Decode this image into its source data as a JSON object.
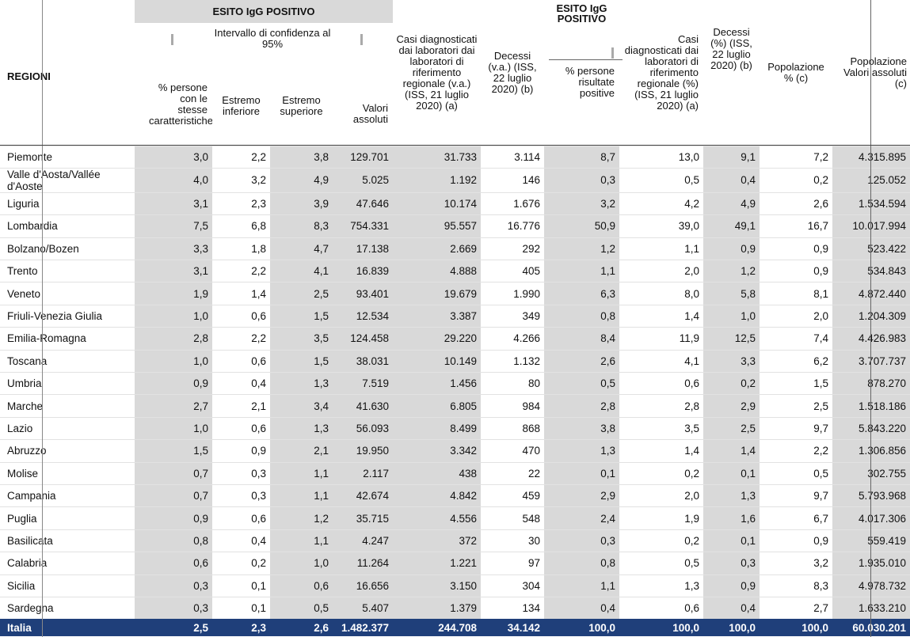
{
  "headers": {
    "regioni": "REGIONI",
    "esito1_title": "ESITO IgG POSITIVO",
    "intervallo": "Intervallo di confidenza al 95%",
    "pct_persone": "% persone con le stesse caratteristiche",
    "estremo_inf": "Estremo inferiore",
    "estremo_sup": "Estremo superiore",
    "valori_assoluti": "Valori assoluti",
    "casi_va": "Casi diagnosticati dai laboratori dai laboratori di riferimento regionale (v.a.) (ISS, 21 luglio 2020) (a)",
    "decessi_va": "Decessi (v.a.) (ISS, 22 luglio 2020) (b)",
    "esito2_title": "ESITO IgG POSITIVO",
    "pct_risultate": "% persone risultate positive",
    "casi_pct": "Casi diagnosticati dai laboratori di riferimento regionale (%) (ISS, 21 luglio 2020) (a)",
    "decessi_pct": "Decessi (%) (ISS, 22 luglio 2020) (b)",
    "pop_pct": "Popolazione % (c)",
    "pop_abs": "Popolazione Valori assoluti (c)"
  },
  "rows": [
    {
      "region": "Piemonte",
      "pct": "3,0",
      "inf": "2,2",
      "sup": "3,8",
      "abs": "129.701",
      "casi": "31.733",
      "dec": "3.114",
      "pos": "8,7",
      "casi_pct": "13,0",
      "dec_pct": "9,1",
      "pop_pct": "7,2",
      "pop": "4.315.895"
    },
    {
      "region": "Valle d'Aosta/Vallée d'Aoste",
      "pct": "4,0",
      "inf": "3,2",
      "sup": "4,9",
      "abs": "5.025",
      "casi": "1.192",
      "dec": "146",
      "pos": "0,3",
      "casi_pct": "0,5",
      "dec_pct": "0,4",
      "pop_pct": "0,2",
      "pop": "125.052"
    },
    {
      "region": "Liguria",
      "pct": "3,1",
      "inf": "2,3",
      "sup": "3,9",
      "abs": "47.646",
      "casi": "10.174",
      "dec": "1.676",
      "pos": "3,2",
      "casi_pct": "4,2",
      "dec_pct": "4,9",
      "pop_pct": "2,6",
      "pop": "1.534.594"
    },
    {
      "region": "Lombardia",
      "pct": "7,5",
      "inf": "6,8",
      "sup": "8,3",
      "abs": "754.331",
      "casi": "95.557",
      "dec": "16.776",
      "pos": "50,9",
      "casi_pct": "39,0",
      "dec_pct": "49,1",
      "pop_pct": "16,7",
      "pop": "10.017.994"
    },
    {
      "region": "Bolzano/Bozen",
      "pct": "3,3",
      "inf": "1,8",
      "sup": "4,7",
      "abs": "17.138",
      "casi": "2.669",
      "dec": "292",
      "pos": "1,2",
      "casi_pct": "1,1",
      "dec_pct": "0,9",
      "pop_pct": "0,9",
      "pop": "523.422"
    },
    {
      "region": "Trento",
      "pct": "3,1",
      "inf": "2,2",
      "sup": "4,1",
      "abs": "16.839",
      "casi": "4.888",
      "dec": "405",
      "pos": "1,1",
      "casi_pct": "2,0",
      "dec_pct": "1,2",
      "pop_pct": "0,9",
      "pop": "534.843"
    },
    {
      "region": "Veneto",
      "pct": "1,9",
      "inf": "1,4",
      "sup": "2,5",
      "abs": "93.401",
      "casi": "19.679",
      "dec": "1.990",
      "pos": "6,3",
      "casi_pct": "8,0",
      "dec_pct": "5,8",
      "pop_pct": "8,1",
      "pop": "4.872.440"
    },
    {
      "region": "Friuli-Venezia Giulia",
      "pct": "1,0",
      "inf": "0,6",
      "sup": "1,5",
      "abs": "12.534",
      "casi": "3.387",
      "dec": "349",
      "pos": "0,8",
      "casi_pct": "1,4",
      "dec_pct": "1,0",
      "pop_pct": "2,0",
      "pop": "1.204.309"
    },
    {
      "region": "Emilia-Romagna",
      "pct": "2,8",
      "inf": "2,2",
      "sup": "3,5",
      "abs": "124.458",
      "casi": "29.220",
      "dec": "4.266",
      "pos": "8,4",
      "casi_pct": "11,9",
      "dec_pct": "12,5",
      "pop_pct": "7,4",
      "pop": "4.426.983"
    },
    {
      "region": "Toscana",
      "pct": "1,0",
      "inf": "0,6",
      "sup": "1,5",
      "abs": "38.031",
      "casi": "10.149",
      "dec": "1.132",
      "pos": "2,6",
      "casi_pct": "4,1",
      "dec_pct": "3,3",
      "pop_pct": "6,2",
      "pop": "3.707.737"
    },
    {
      "region": "Umbria",
      "pct": "0,9",
      "inf": "0,4",
      "sup": "1,3",
      "abs": "7.519",
      "casi": "1.456",
      "dec": "80",
      "pos": "0,5",
      "casi_pct": "0,6",
      "dec_pct": "0,2",
      "pop_pct": "1,5",
      "pop": "878.270"
    },
    {
      "region": "Marche",
      "pct": "2,7",
      "inf": "2,1",
      "sup": "3,4",
      "abs": "41.630",
      "casi": "6.805",
      "dec": "984",
      "pos": "2,8",
      "casi_pct": "2,8",
      "dec_pct": "2,9",
      "pop_pct": "2,5",
      "pop": "1.518.186"
    },
    {
      "region": "Lazio",
      "pct": "1,0",
      "inf": "0,6",
      "sup": "1,3",
      "abs": "56.093",
      "casi": "8.499",
      "dec": "868",
      "pos": "3,8",
      "casi_pct": "3,5",
      "dec_pct": "2,5",
      "pop_pct": "9,7",
      "pop": "5.843.220"
    },
    {
      "region": "Abruzzo",
      "pct": "1,5",
      "inf": "0,9",
      "sup": "2,1",
      "abs": "19.950",
      "casi": "3.342",
      "dec": "470",
      "pos": "1,3",
      "casi_pct": "1,4",
      "dec_pct": "1,4",
      "pop_pct": "2,2",
      "pop": "1.306.856"
    },
    {
      "region": "Molise",
      "pct": "0,7",
      "inf": "0,3",
      "sup": "1,1",
      "abs": "2.117",
      "casi": "438",
      "dec": "22",
      "pos": "0,1",
      "casi_pct": "0,2",
      "dec_pct": "0,1",
      "pop_pct": "0,5",
      "pop": "302.755"
    },
    {
      "region": "Campania",
      "pct": "0,7",
      "inf": "0,3",
      "sup": "1,1",
      "abs": "42.674",
      "casi": "4.842",
      "dec": "459",
      "pos": "2,9",
      "casi_pct": "2,0",
      "dec_pct": "1,3",
      "pop_pct": "9,7",
      "pop": "5.793.968"
    },
    {
      "region": "Puglia",
      "pct": "0,9",
      "inf": "0,6",
      "sup": "1,2",
      "abs": "35.715",
      "casi": "4.556",
      "dec": "548",
      "pos": "2,4",
      "casi_pct": "1,9",
      "dec_pct": "1,6",
      "pop_pct": "6,7",
      "pop": "4.017.306"
    },
    {
      "region": "Basilicata",
      "pct": "0,8",
      "inf": "0,4",
      "sup": "1,1",
      "abs": "4.247",
      "casi": "372",
      "dec": "30",
      "pos": "0,3",
      "casi_pct": "0,2",
      "dec_pct": "0,1",
      "pop_pct": "0,9",
      "pop": "559.419"
    },
    {
      "region": "Calabria",
      "pct": "0,6",
      "inf": "0,2",
      "sup": "1,0",
      "abs": "11.264",
      "casi": "1.221",
      "dec": "97",
      "pos": "0,8",
      "casi_pct": "0,5",
      "dec_pct": "0,3",
      "pop_pct": "3,2",
      "pop": "1.935.010"
    },
    {
      "region": "Sicilia",
      "pct": "0,3",
      "inf": "0,1",
      "sup": "0,6",
      "abs": "16.656",
      "casi": "3.150",
      "dec": "304",
      "pos": "1,1",
      "casi_pct": "1,3",
      "dec_pct": "0,9",
      "pop_pct": "8,3",
      "pop": "4.978.732"
    },
    {
      "region": "Sardegna",
      "pct": "0,3",
      "inf": "0,1",
      "sup": "0,5",
      "abs": "5.407",
      "casi": "1.379",
      "dec": "134",
      "pos": "0,4",
      "casi_pct": "0,6",
      "dec_pct": "0,4",
      "pop_pct": "2,7",
      "pop": "1.633.210"
    }
  ],
  "total": {
    "region": "Italia",
    "pct": "2,5",
    "inf": "2,3",
    "sup": "2,6",
    "abs": "1.482.377",
    "casi": "244.708",
    "dec": "34.142",
    "pos": "100,0",
    "casi_pct": "100,0",
    "dec_pct": "100,0",
    "pop_pct": "100,0",
    "pop": "60.030.201"
  },
  "colors": {
    "grey": "#d9d9d9",
    "total_row": "#1f3f7a"
  }
}
